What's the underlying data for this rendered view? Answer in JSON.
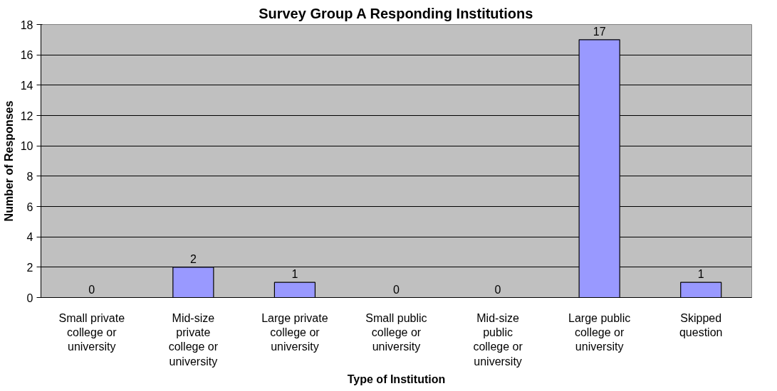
{
  "chart_data": {
    "type": "bar",
    "title": "Survey Group A Responding Institutions",
    "xlabel": "Type of Institution",
    "ylabel": "Number of Responses",
    "categories": [
      "Small private college or university",
      "Mid-size private college or university",
      "Large private college or university",
      "Small public college or university",
      "Mid-size public college or university",
      "Large public college or university",
      "Skipped question"
    ],
    "values": [
      0,
      2,
      1,
      0,
      0,
      17,
      1
    ],
    "color": "#9999ff",
    "ylim": [
      0,
      18
    ],
    "yticks": [
      0,
      2,
      4,
      6,
      8,
      10,
      12,
      14,
      16,
      18
    ],
    "grid": "y",
    "data_labels": true
  }
}
